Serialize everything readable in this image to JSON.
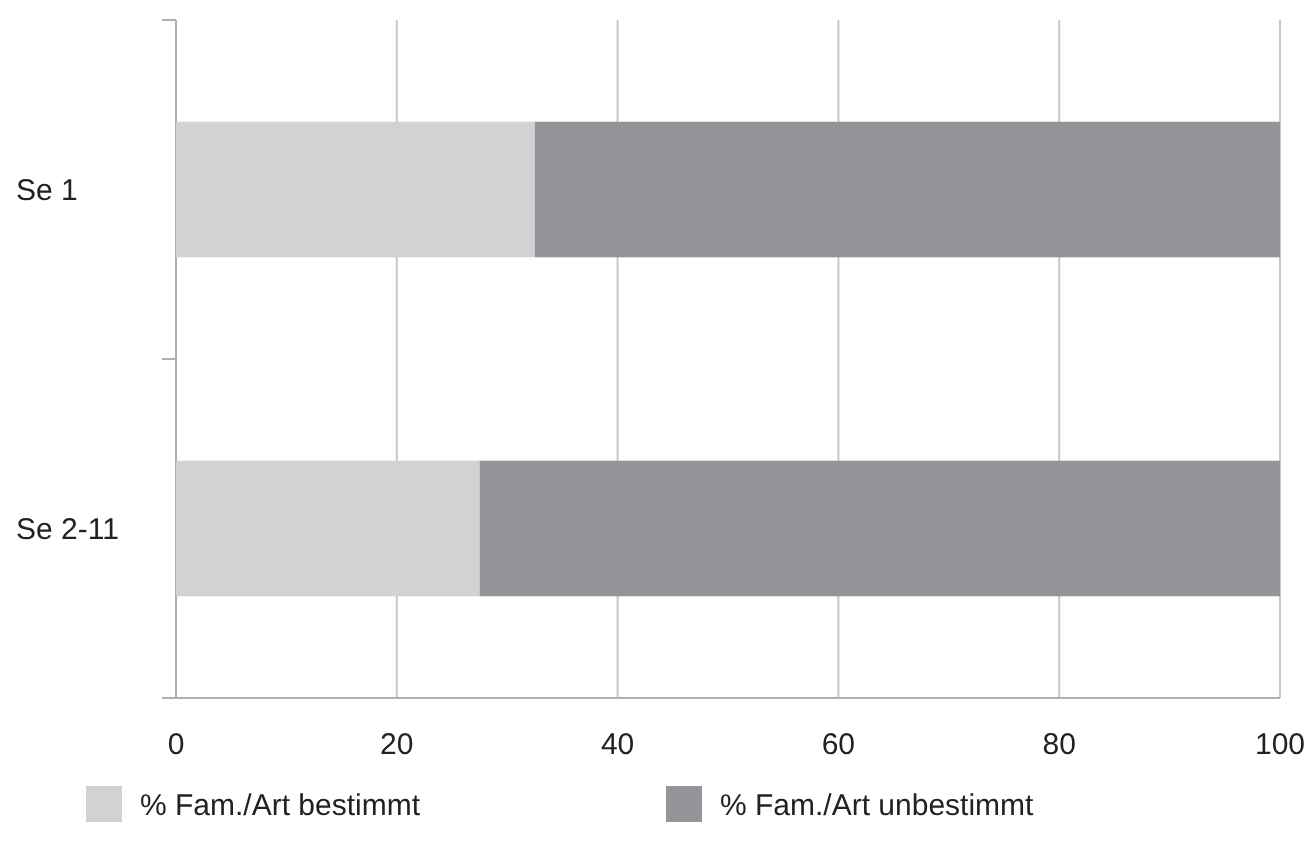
{
  "chart_data": {
    "type": "bar",
    "orientation": "horizontal",
    "stacked": true,
    "categories": [
      "Se 1",
      "Se 2-11"
    ],
    "series": [
      {
        "name": "% Fam./Art bestimmt",
        "color": "#d1d2d4",
        "values": [
          32.5,
          27.5
        ]
      },
      {
        "name": "% Fam./Art unbestimmt",
        "color": "#949598",
        "values": [
          67.5,
          72.5
        ]
      }
    ],
    "xlim": [
      0,
      100
    ],
    "xticks": [
      0,
      20,
      40,
      60,
      80,
      100
    ],
    "grid": "x",
    "legend": "bottom"
  }
}
